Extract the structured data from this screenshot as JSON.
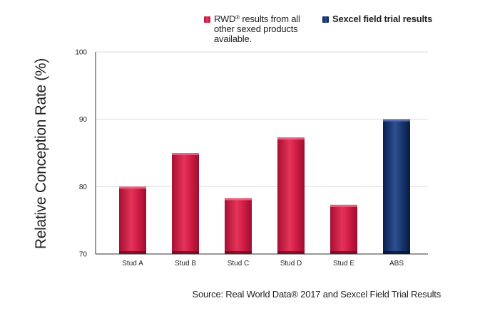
{
  "legend": {
    "rwd_label_main": "RWD",
    "rwd_label_sup": "®",
    "rwd_label_rest": " results from all other sexed products available.",
    "sexcel_label": "Sexcel field trial results"
  },
  "source": "Source: Real World Data® 2017 and Sexcel Field Trial Results",
  "colors": {
    "rwd": "#d01c44",
    "sexcel": "#1a3670",
    "grid": "#dddddd"
  },
  "chart_data": {
    "type": "bar",
    "categories": [
      "Stud A",
      "Stud B",
      "Stud C",
      "Stud D",
      "Stud E",
      "ABS"
    ],
    "values": [
      80,
      85,
      78.3,
      87.3,
      77.3,
      90
    ],
    "series_of": [
      "rwd",
      "rwd",
      "rwd",
      "rwd",
      "rwd",
      "sexcel"
    ],
    "ylabel": "Relative Conception Rate (%)",
    "ylim": [
      70,
      100
    ],
    "yticks": [
      70,
      80,
      90,
      100
    ],
    "grid": true,
    "legend_position": "top-right"
  }
}
